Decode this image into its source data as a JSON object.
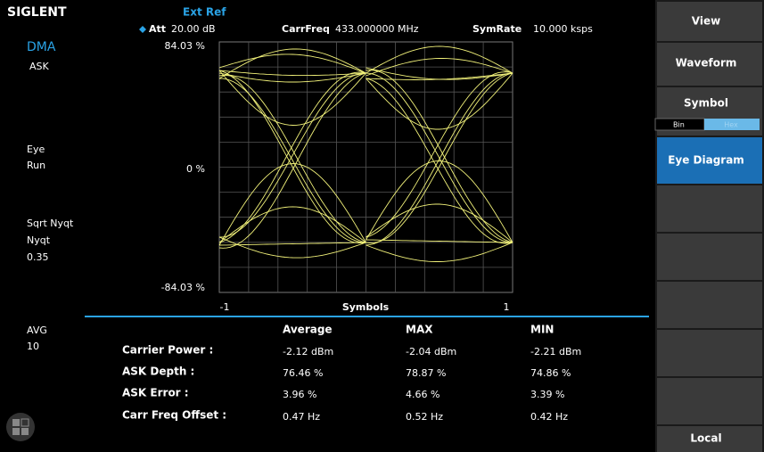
{
  "header": {
    "brand": "SIGLENT",
    "ref": "Ext Ref",
    "att_label": "Att",
    "att_value": "20.00 dB",
    "carrfreq_label": "CarrFreq",
    "carrfreq_value": "433.000000 MHz",
    "symrate_label": "SymRate",
    "symrate_value": "10.000 ksps"
  },
  "sidebar": {
    "mode": "DMA",
    "modulation": "ASK",
    "display": "Eye",
    "state": "Run",
    "filter": "Sqrt Nyqt",
    "filter_param": "Nyqt",
    "alpha": "0.35",
    "avg_label": "AVG",
    "avg_value": "10"
  },
  "plot": {
    "y_top": "84.03 %",
    "y_mid": "0 %",
    "y_bottom": "-84.03 %",
    "x_left": "-1",
    "x_label": "Symbols",
    "x_right": "1"
  },
  "table": {
    "columns": [
      "Average",
      "MAX",
      "MIN"
    ],
    "rows": [
      {
        "label": "Carrier Power :",
        "values": [
          "-2.12 dBm",
          "-2.04 dBm",
          "-2.21 dBm"
        ]
      },
      {
        "label": "ASK Depth :",
        "values": [
          "76.46 %",
          "78.87 %",
          "74.86 %"
        ]
      },
      {
        "label": "ASK Error :",
        "values": [
          "3.96 %",
          "4.66 %",
          "3.39 %"
        ]
      },
      {
        "label": "Carr Freq Offset :",
        "values": [
          "0.47 Hz",
          "0.52 Hz",
          "0.42 Hz"
        ]
      }
    ]
  },
  "menu": {
    "view": "View",
    "waveform": "Waveform",
    "symbol": "Symbol",
    "toggle_bin": "Bin",
    "toggle_hex": "Hex",
    "eye_diagram": "Eye Diagram",
    "local": "Local"
  }
}
